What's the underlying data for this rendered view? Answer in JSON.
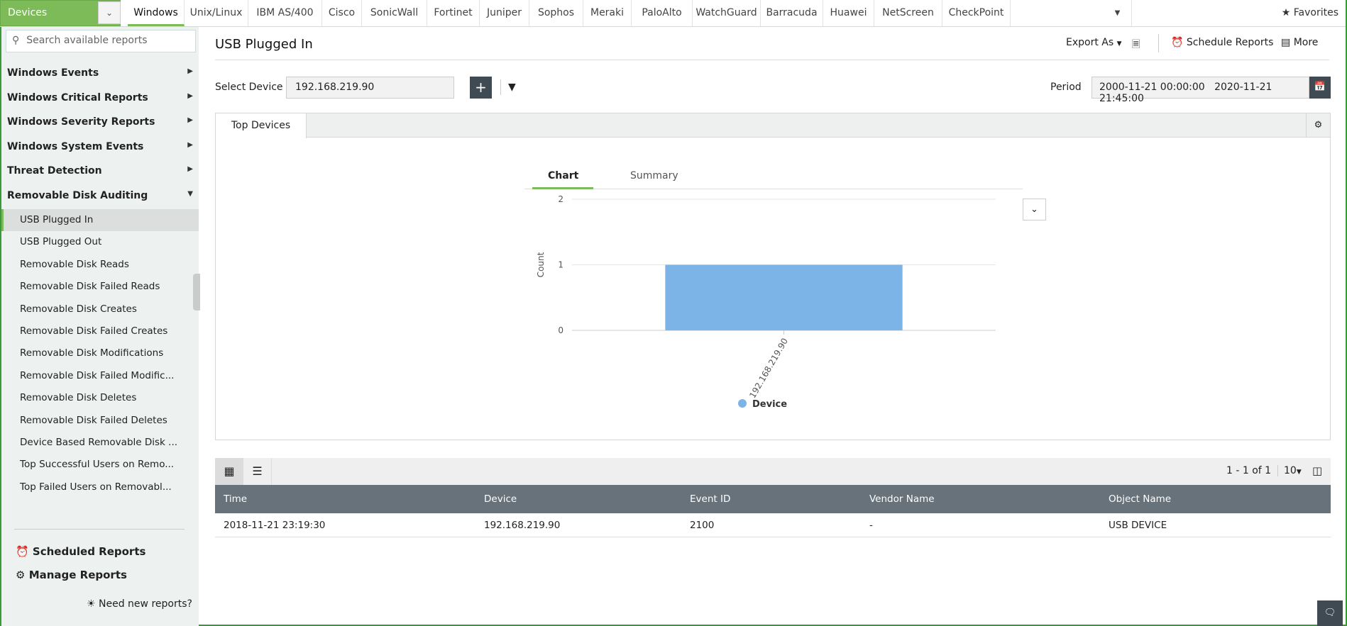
{
  "topbar": {
    "device_selector": "Devices",
    "vendors": [
      "Windows",
      "Unix/Linux",
      "IBM AS/400",
      "Cisco",
      "SonicWall",
      "Fortinet",
      "Juniper",
      "Sophos",
      "Meraki",
      "PaloAlto",
      "WatchGuard",
      "Barracuda",
      "Huawei",
      "NetScreen",
      "CheckPoint"
    ],
    "active_vendor": "Windows",
    "favorites": "Favorites"
  },
  "sidebar": {
    "search_placeholder": "Search available reports",
    "groups": [
      "Windows Events",
      "Windows Critical Reports",
      "Windows Severity Reports",
      "Windows System Events",
      "Threat Detection",
      "Removable Disk Auditing"
    ],
    "items": [
      "USB Plugged In",
      "USB Plugged Out",
      "Removable Disk Reads",
      "Removable Disk Failed Reads",
      "Removable Disk Creates",
      "Removable Disk Failed Creates",
      "Removable Disk Modifications",
      "Removable Disk Failed Modific...",
      "Removable Disk Deletes",
      "Removable Disk Failed Deletes",
      "Device Based Removable Disk ...",
      "Top Successful Users on Remo...",
      "Top Failed Users on Removabl..."
    ],
    "selected": "USB Plugged In",
    "scheduled_reports": "Scheduled Reports",
    "manage_reports": "Manage Reports",
    "need_new": "Need new reports?"
  },
  "header": {
    "title": "USB Plugged In",
    "export_as": "Export As",
    "schedule_reports": "Schedule Reports",
    "more": "More"
  },
  "filters": {
    "select_device_label": "Select Device",
    "device_value": "192.168.219.90",
    "period_label": "Period",
    "period_from": "2000-11-21 00:00:00",
    "period_to": "2020-11-21 21:45:00"
  },
  "panel": {
    "tab": "Top Devices",
    "chart_tab": "Chart",
    "summary_tab": "Summary"
  },
  "chart_data": {
    "type": "bar",
    "categories": [
      "192.168.219.90"
    ],
    "series": [
      {
        "name": "Device",
        "values": [
          1
        ],
        "color": "#7cb4e8"
      }
    ],
    "ylabel": "Count",
    "ylim": [
      0,
      2
    ],
    "yticks": [
      0,
      1,
      2
    ],
    "legend": "bottom",
    "grid": true
  },
  "table": {
    "pagination": "1 - 1 of 1",
    "page_size": "10",
    "columns": [
      "Time",
      "Device",
      "Event ID",
      "Vendor Name",
      "Object Name"
    ],
    "rows": [
      [
        "2018-11-21 23:19:30",
        "192.168.219.90",
        "2100",
        "-",
        "USB DEVICE"
      ]
    ]
  }
}
